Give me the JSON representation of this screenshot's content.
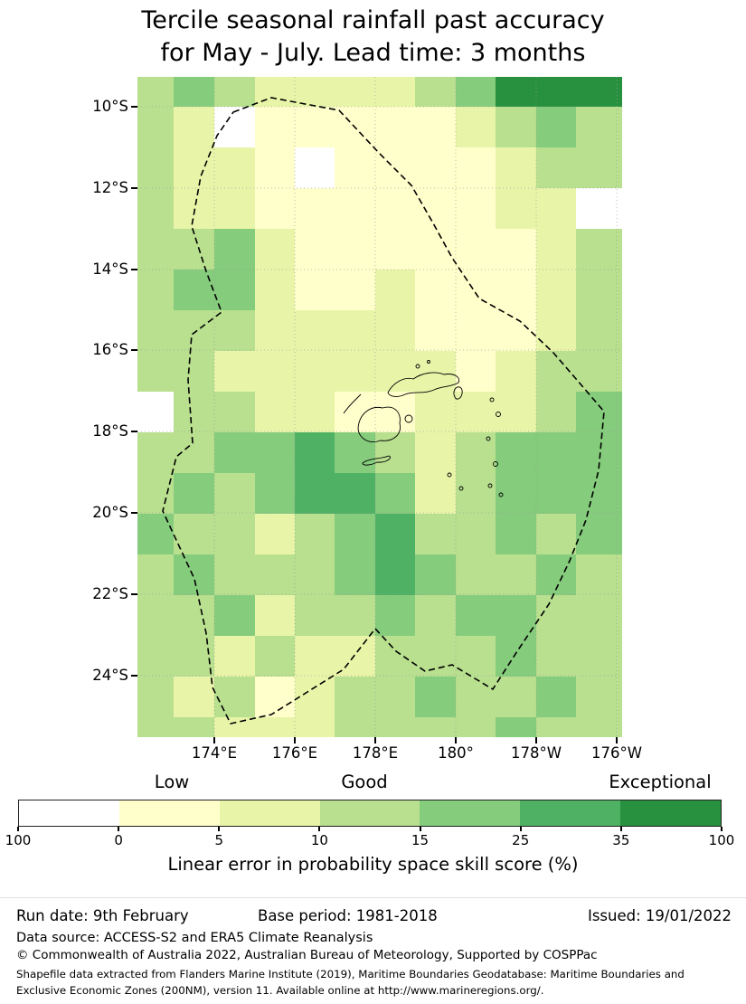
{
  "title": {
    "line1": "Tercile seasonal rainfall past accuracy",
    "line2": "for May - July. Lead time: 3 months"
  },
  "axes": {
    "lat_ticks": [
      "10°S",
      "12°S",
      "14°S",
      "16°S",
      "18°S",
      "20°S",
      "22°S",
      "24°S"
    ],
    "lon_ticks": [
      "174°E",
      "176°E",
      "178°E",
      "180°",
      "178°W",
      "176°W"
    ]
  },
  "legend": {
    "quality_labels": [
      "Low",
      "Good",
      "Exceptional"
    ],
    "tick_labels": [
      "100",
      "0",
      "5",
      "10",
      "15",
      "25",
      "35",
      "100"
    ],
    "segment_colors": [
      "#ffffff",
      "#ffffcc",
      "#e8f5a8",
      "#b8e08f",
      "#85cc7c",
      "#4eb164",
      "#27913f"
    ],
    "caption": "Linear error in probability space skill score (%)"
  },
  "footer": {
    "run_date": "Run date: 9th February",
    "base_period": "Base period: 1981-2018",
    "issued": "Issued: 19/01/2022",
    "data_source": "Data source: ACCESS-S2 and ERA5 Climate Reanalysis",
    "copyright": "© Commonwealth of Australia 2022, Australian Bureau of Meteorology, Supported by COSPPac",
    "shapefile_note": "Shapefile data extracted from Flanders Marine Institute (2019), Maritime Boundaries Geodatabase: Maritime Boundaries and Exclusive Economic Zones (200NM), version 11. Available online at http://www.marineregions.org/."
  },
  "chart_data": {
    "type": "heatmap",
    "title": "Tercile seasonal rainfall past accuracy for May - July. Lead time: 3 months",
    "value_label": "Linear error in probability space skill score (%)",
    "region": "Fiji EEZ and surrounds",
    "lon_range_deg_east": [
      172,
      184.2
    ],
    "lat_range_deg_south": [
      9.3,
      25.5
    ],
    "x_tick_labels": [
      "174°E",
      "176°E",
      "178°E",
      "180°",
      "178°W",
      "176°W"
    ],
    "y_tick_labels": [
      "10°S",
      "12°S",
      "14°S",
      "16°S",
      "18°S",
      "20°S",
      "22°S",
      "24°S"
    ],
    "bins": [
      {
        "skill_range": "< 0",
        "quality": "Low",
        "color": "#ffffff"
      },
      {
        "skill_range": "0-5",
        "quality": "Low",
        "color": "#ffffcc"
      },
      {
        "skill_range": "5-10",
        "quality": "Low-Good",
        "color": "#e8f5a8"
      },
      {
        "skill_range": "10-15",
        "quality": "Good",
        "color": "#b8e08f"
      },
      {
        "skill_range": "15-25",
        "quality": "Good",
        "color": "#85cc7c"
      },
      {
        "skill_range": "25-35",
        "quality": "Good-Exceptional",
        "color": "#4eb164"
      },
      {
        "skill_range": "35-100",
        "quality": "Exceptional",
        "color": "#27913f"
      }
    ],
    "palette": [
      "#ffffff",
      "#ffffcc",
      "#e8f5a8",
      "#b8e08f",
      "#85cc7c",
      "#4eb164",
      "#27913f"
    ],
    "grid_note": "Each digit indexes bins/palette; rows run north to south (~9.3°S to 25.5°S), columns west to east (~172°E to 176°W), ~1° cells (approximate read of the figure).",
    "grid_rows": [
      "343222234666",
      "320111112343",
      "322101111233",
      "322111111220",
      "334211111123",
      "344211211123",
      "333222211123",
      "332222221233",
      "033221122234",
      "334454323444",
      "343455423444",
      "433234533434",
      "343334543343",
      "334233434433",
      "332322333433",
      "323123343343",
      "332223333433"
    ]
  }
}
